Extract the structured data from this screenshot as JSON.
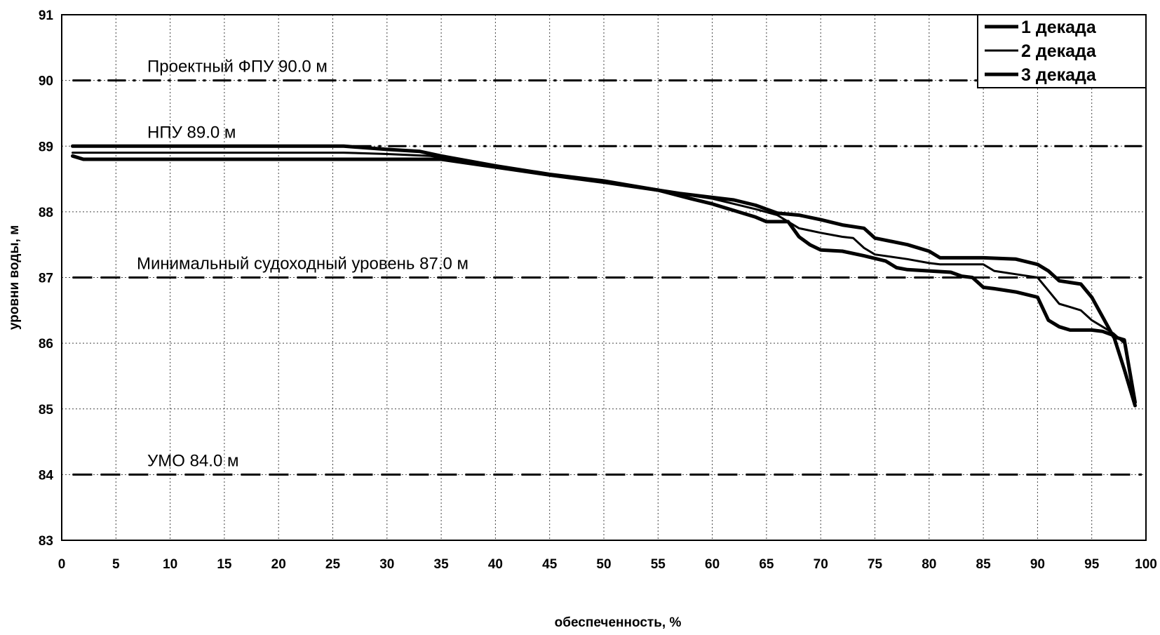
{
  "chart_data": {
    "type": "line",
    "title": "",
    "xlabel": "обеспеченность, %",
    "ylabel": "уровни воды, м",
    "xlim": [
      0,
      100
    ],
    "ylim": [
      83,
      91
    ],
    "xticks": [
      "0",
      "5",
      "10",
      "15",
      "20",
      "25",
      "30",
      "35",
      "40",
      "45",
      "50",
      "55",
      "60",
      "65",
      "70",
      "75",
      "80",
      "85",
      "90",
      "95",
      "100"
    ],
    "yticks": [
      "83",
      "84",
      "85",
      "86",
      "87",
      "88",
      "89",
      "90",
      "91"
    ],
    "grid": true,
    "legend_position": "top-right",
    "reference_lines": [
      {
        "label": "Проектный ФПУ 90.0 м",
        "value": 90.0,
        "style": "dash-dot"
      },
      {
        "label": "НПУ 89.0 м",
        "value": 89.0,
        "style": "dash-dot"
      },
      {
        "label": "Минимальный судоходный уровень 87.0 м",
        "value": 87.0,
        "style": "dashed"
      },
      {
        "label": "УМО 84.0 м",
        "value": 84.0,
        "style": "dashed"
      }
    ],
    "series": [
      {
        "name": "1 декада",
        "width": 5,
        "points": [
          [
            1,
            89.0
          ],
          [
            26,
            89.0
          ],
          [
            30,
            88.95
          ],
          [
            33,
            88.92
          ],
          [
            35,
            88.85
          ],
          [
            40,
            88.7
          ],
          [
            45,
            88.57
          ],
          [
            50,
            88.47
          ],
          [
            55,
            88.33
          ],
          [
            57,
            88.28
          ],
          [
            60,
            88.22
          ],
          [
            62,
            88.18
          ],
          [
            64,
            88.1
          ],
          [
            66,
            87.98
          ],
          [
            68,
            87.95
          ],
          [
            70,
            87.88
          ],
          [
            72,
            87.8
          ],
          [
            74,
            87.75
          ],
          [
            75,
            87.6
          ],
          [
            78,
            87.5
          ],
          [
            80,
            87.4
          ],
          [
            81,
            87.3
          ],
          [
            85,
            87.3
          ],
          [
            88,
            87.28
          ],
          [
            90,
            87.2
          ],
          [
            91,
            87.1
          ],
          [
            92,
            86.95
          ],
          [
            94,
            86.9
          ],
          [
            95,
            86.7
          ],
          [
            96,
            86.4
          ],
          [
            97,
            86.1
          ],
          [
            98,
            86.05
          ],
          [
            99,
            85.1
          ]
        ]
      },
      {
        "name": "2 декада",
        "width": 3,
        "points": [
          [
            1,
            88.9
          ],
          [
            26,
            88.9
          ],
          [
            30,
            88.88
          ],
          [
            34,
            88.85
          ],
          [
            35,
            88.83
          ],
          [
            40,
            88.7
          ],
          [
            45,
            88.57
          ],
          [
            50,
            88.46
          ],
          [
            55,
            88.33
          ],
          [
            58,
            88.25
          ],
          [
            60,
            88.2
          ],
          [
            62,
            88.12
          ],
          [
            64,
            88.04
          ],
          [
            66,
            87.95
          ],
          [
            68,
            87.75
          ],
          [
            70,
            87.68
          ],
          [
            72,
            87.62
          ],
          [
            73,
            87.6
          ],
          [
            74,
            87.45
          ],
          [
            75,
            87.35
          ],
          [
            78,
            87.28
          ],
          [
            80,
            87.22
          ],
          [
            81,
            87.2
          ],
          [
            85,
            87.2
          ],
          [
            86,
            87.1
          ],
          [
            88,
            87.05
          ],
          [
            90,
            87.0
          ],
          [
            91,
            86.8
          ],
          [
            92,
            86.6
          ],
          [
            93,
            86.55
          ],
          [
            94,
            86.5
          ],
          [
            95,
            86.35
          ],
          [
            96,
            86.25
          ],
          [
            97,
            86.15
          ],
          [
            98,
            86.0
          ],
          [
            99,
            85.1
          ]
        ]
      },
      {
        "name": "3 декада",
        "width": 5,
        "points": [
          [
            1,
            88.85
          ],
          [
            2,
            88.8
          ],
          [
            30,
            88.8
          ],
          [
            35,
            88.8
          ],
          [
            40,
            88.68
          ],
          [
            45,
            88.56
          ],
          [
            50,
            88.45
          ],
          [
            55,
            88.33
          ],
          [
            58,
            88.2
          ],
          [
            60,
            88.12
          ],
          [
            62,
            88.02
          ],
          [
            64,
            87.92
          ],
          [
            65,
            87.85
          ],
          [
            67,
            87.85
          ],
          [
            68,
            87.62
          ],
          [
            69,
            87.5
          ],
          [
            70,
            87.42
          ],
          [
            72,
            87.4
          ],
          [
            74,
            87.33
          ],
          [
            76,
            87.25
          ],
          [
            77,
            87.15
          ],
          [
            78,
            87.12
          ],
          [
            80,
            87.1
          ],
          [
            82,
            87.08
          ],
          [
            83,
            87.02
          ],
          [
            84,
            87.0
          ],
          [
            85,
            86.85
          ],
          [
            86,
            86.83
          ],
          [
            88,
            86.78
          ],
          [
            90,
            86.7
          ],
          [
            91,
            86.35
          ],
          [
            92,
            86.25
          ],
          [
            93,
            86.2
          ],
          [
            95,
            86.2
          ],
          [
            96,
            86.18
          ],
          [
            97,
            86.12
          ],
          [
            98,
            85.6
          ],
          [
            99,
            85.05
          ]
        ]
      }
    ]
  }
}
